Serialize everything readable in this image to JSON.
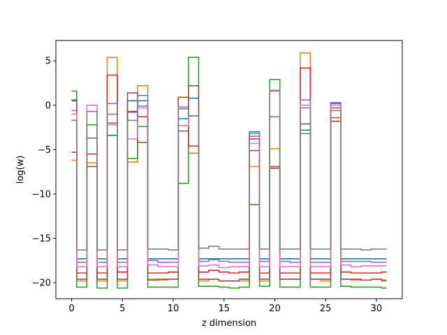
{
  "chart_data": {
    "type": "line",
    "step": "mid",
    "title": "",
    "xlabel": "z dimension",
    "ylabel": "log(w)",
    "xlim": [
      -1.55,
      32.55
    ],
    "ylim": [
      -21.8,
      7.3
    ],
    "xticks": [
      0,
      5,
      10,
      15,
      20,
      25,
      30
    ],
    "yticks": [
      -20,
      -15,
      -10,
      -5,
      0,
      5
    ],
    "ytick_labels": [
      "−20",
      "−15",
      "−10",
      "−5",
      "0",
      "5"
    ],
    "grid": false,
    "x": [
      0,
      1,
      2,
      3,
      4,
      5,
      6,
      7,
      8,
      9,
      10,
      11,
      12,
      13,
      14,
      15,
      16,
      17,
      18,
      19,
      20,
      21,
      22,
      23,
      24,
      25,
      26,
      27,
      28,
      29,
      30,
      31
    ],
    "series": [
      {
        "color": "#1f77b4",
        "values": [
          0.6,
          -17.3,
          -3.7,
          -17.3,
          -3.4,
          -17.3,
          0.5,
          0.5,
          -17.3,
          -17.3,
          -17.3,
          -1.5,
          0.8,
          -17.3,
          -17.3,
          -17.3,
          -17.3,
          -17.3,
          -3.0,
          -17.3,
          -1.3,
          -17.3,
          -17.3,
          -2.8,
          -17.3,
          -17.3,
          0.2,
          -17.3,
          -17.3,
          -17.3,
          -17.3,
          -17.3
        ]
      },
      {
        "color": "#ff7f0e",
        "values": [
          -6.2,
          -19.8,
          -6.5,
          -19.8,
          5.4,
          -19.8,
          -6.4,
          2.2,
          -19.6,
          -19.7,
          -19.6,
          -2.3,
          -5.4,
          -19.8,
          -19.6,
          -19.8,
          -19.8,
          -19.8,
          -6.9,
          -19.8,
          -4.9,
          -19.6,
          -19.6,
          5.9,
          -19.6,
          -19.8,
          -1.4,
          -19.6,
          -19.7,
          -19.7,
          -19.6,
          -19.8
        ]
      },
      {
        "color": "#2ca02c",
        "values": [
          1.6,
          -20.5,
          -2.2,
          -20.6,
          -3.4,
          -20.6,
          -6.0,
          -2.4,
          -20.5,
          -20.5,
          -20.5,
          -8.8,
          5.4,
          -20.4,
          -20.4,
          -20.5,
          -20.6,
          -20.5,
          -11.2,
          -20.4,
          2.9,
          -20.5,
          -20.5,
          -3.2,
          -20.5,
          -20.5,
          -1.4,
          -20.4,
          -20.5,
          -20.5,
          -20.5,
          -20.6
        ]
      },
      {
        "color": "#d62728",
        "values": [
          -5.3,
          -18.9,
          -5.5,
          -18.9,
          3.4,
          -18.8,
          -0.7,
          -1.3,
          -18.9,
          -18.9,
          -18.8,
          0.9,
          -4.6,
          -18.8,
          -18.6,
          -18.8,
          -18.9,
          -18.8,
          -3.8,
          -18.9,
          -7.1,
          -18.9,
          -18.9,
          4.2,
          -18.9,
          -18.9,
          -1.8,
          -18.8,
          -18.9,
          -18.9,
          -18.9,
          -18.8
        ]
      },
      {
        "color": "#9467bd",
        "values": [
          -0.6,
          -17.7,
          -3.7,
          -17.7,
          0.2,
          -17.7,
          -0.8,
          -0.1,
          -17.5,
          -17.7,
          -17.7,
          -0.2,
          -1.2,
          -17.6,
          -17.4,
          -17.6,
          -17.7,
          -17.7,
          -3.5,
          -17.6,
          -1.3,
          -17.6,
          -17.7,
          0.6,
          -17.7,
          -17.7,
          0.3,
          -17.6,
          -17.6,
          -17.6,
          -17.7,
          -17.7
        ]
      },
      {
        "color": "#8c564b",
        "values": [
          0.5,
          -19.6,
          -6.9,
          -19.6,
          -2.0,
          -19.6,
          1.4,
          -4.2,
          -19.7,
          -19.6,
          -19.6,
          -2.9,
          2.2,
          -19.6,
          -19.6,
          -19.8,
          -19.8,
          -19.6,
          -5.1,
          -19.6,
          -6.9,
          -19.6,
          -19.6,
          -2.1,
          -19.6,
          -19.6,
          -0.3,
          -19.6,
          -19.6,
          -19.7,
          -19.6,
          -19.7
        ]
      },
      {
        "color": "#e377c2",
        "values": [
          -1.0,
          -18.2,
          0.0,
          -18.2,
          -2.2,
          -18.2,
          -3.8,
          -0.3,
          -18.0,
          -18.2,
          -18.2,
          -2.3,
          -1.2,
          -18.1,
          -18.0,
          -18.3,
          -18.2,
          -18.2,
          -4.3,
          -18.2,
          1.7,
          -18.2,
          -18.2,
          0.0,
          -18.2,
          -18.2,
          0.0,
          -18.0,
          -18.2,
          -18.1,
          -18.1,
          -18.1
        ]
      },
      {
        "color": "#7f7f7f",
        "values": [
          -1.7,
          -16.3,
          -0.7,
          -16.3,
          -1.0,
          -16.3,
          -1.7,
          1.1,
          -16.2,
          -16.2,
          -16.3,
          -0.4,
          -1.2,
          -16.1,
          -15.9,
          -16.2,
          -16.2,
          -16.2,
          -3.2,
          -16.2,
          1.6,
          -16.2,
          -16.2,
          -0.3,
          -16.2,
          -16.2,
          -0.6,
          -16.2,
          -16.2,
          -16.3,
          -16.2,
          -16.2
        ]
      }
    ]
  }
}
